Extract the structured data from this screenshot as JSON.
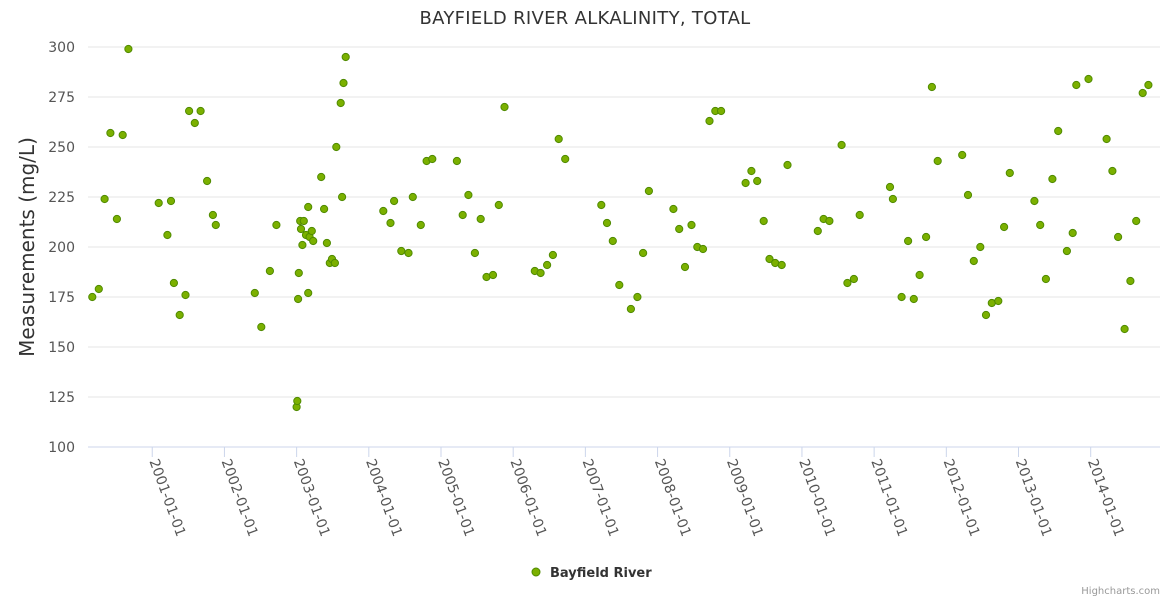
{
  "chart_data": {
    "type": "scatter",
    "title": "BAYFIELD RIVER ALKALINITY, TOTAL",
    "ylabel": "Measurements (mg/L)",
    "xlabel": "",
    "ylim": [
      100,
      300
    ],
    "yticks": [
      100,
      125,
      150,
      175,
      200,
      225,
      250,
      275,
      300
    ],
    "xlim": [
      2000.11,
      2014.96
    ],
    "xticks": [
      {
        "label": "2001-01-01",
        "value": 2001.0
      },
      {
        "label": "2002-01-01",
        "value": 2002.0
      },
      {
        "label": "2003-01-01",
        "value": 2003.0
      },
      {
        "label": "2004-01-01",
        "value": 2004.0
      },
      {
        "label": "2005-01-01",
        "value": 2005.0
      },
      {
        "label": "2006-01-01",
        "value": 2006.0
      },
      {
        "label": "2007-01-01",
        "value": 2007.0
      },
      {
        "label": "2008-01-01",
        "value": 2008.0
      },
      {
        "label": "2009-01-01",
        "value": 2009.0
      },
      {
        "label": "2010-01-01",
        "value": 2010.0
      },
      {
        "label": "2011-01-01",
        "value": 2011.0
      },
      {
        "label": "2012-01-01",
        "value": 2012.0
      },
      {
        "label": "2013-01-01",
        "value": 2013.0
      },
      {
        "label": "2014-01-01",
        "value": 2014.0
      }
    ],
    "grid": true,
    "legend_position": "bottom-center",
    "series": [
      {
        "name": "Bayfield River",
        "color": "#7bb000",
        "stroke": "#4f8a00",
        "points": [
          [
            2000.17,
            175
          ],
          [
            2000.26,
            179
          ],
          [
            2000.34,
            224
          ],
          [
            2000.42,
            257
          ],
          [
            2000.51,
            214
          ],
          [
            2000.59,
            256
          ],
          [
            2000.67,
            299
          ],
          [
            2001.09,
            222
          ],
          [
            2001.21,
            206
          ],
          [
            2001.26,
            223
          ],
          [
            2001.3,
            182
          ],
          [
            2001.38,
            166
          ],
          [
            2001.46,
            176
          ],
          [
            2001.51,
            268
          ],
          [
            2001.59,
            262
          ],
          [
            2001.67,
            268
          ],
          [
            2001.76,
            233
          ],
          [
            2001.84,
            216
          ],
          [
            2001.88,
            211
          ],
          [
            2002.42,
            177
          ],
          [
            2002.51,
            160
          ],
          [
            2002.63,
            188
          ],
          [
            2002.72,
            211
          ],
          [
            2003.0,
            120
          ],
          [
            2003.01,
            123
          ],
          [
            2003.02,
            174
          ],
          [
            2003.03,
            187
          ],
          [
            2003.05,
            213
          ],
          [
            2003.06,
            209
          ],
          [
            2003.08,
            201
          ],
          [
            2003.1,
            213
          ],
          [
            2003.13,
            206
          ],
          [
            2003.16,
            177
          ],
          [
            2003.16,
            220
          ],
          [
            2003.18,
            205
          ],
          [
            2003.21,
            208
          ],
          [
            2003.23,
            203
          ],
          [
            2003.34,
            235
          ],
          [
            2003.38,
            219
          ],
          [
            2003.42,
            202
          ],
          [
            2003.46,
            192
          ],
          [
            2003.49,
            194
          ],
          [
            2003.53,
            192
          ],
          [
            2003.55,
            250
          ],
          [
            2003.61,
            272
          ],
          [
            2003.63,
            225
          ],
          [
            2003.65,
            282
          ],
          [
            2003.68,
            295
          ],
          [
            2004.2,
            218
          ],
          [
            2004.3,
            212
          ],
          [
            2004.35,
            223
          ],
          [
            2004.45,
            198
          ],
          [
            2004.55,
            197
          ],
          [
            2004.61,
            225
          ],
          [
            2004.72,
            211
          ],
          [
            2004.8,
            243
          ],
          [
            2004.88,
            244
          ],
          [
            2005.22,
            243
          ],
          [
            2005.3,
            216
          ],
          [
            2005.38,
            226
          ],
          [
            2005.47,
            197
          ],
          [
            2005.55,
            214
          ],
          [
            2005.63,
            185
          ],
          [
            2005.72,
            186
          ],
          [
            2005.8,
            221
          ],
          [
            2005.88,
            270
          ],
          [
            2006.3,
            188
          ],
          [
            2006.38,
            187
          ],
          [
            2006.47,
            191
          ],
          [
            2006.55,
            196
          ],
          [
            2006.63,
            254
          ],
          [
            2006.72,
            244
          ],
          [
            2007.22,
            221
          ],
          [
            2007.3,
            212
          ],
          [
            2007.38,
            203
          ],
          [
            2007.47,
            181
          ],
          [
            2007.63,
            169
          ],
          [
            2007.72,
            175
          ],
          [
            2007.8,
            197
          ],
          [
            2007.88,
            228
          ],
          [
            2008.22,
            219
          ],
          [
            2008.3,
            209
          ],
          [
            2008.38,
            190
          ],
          [
            2008.47,
            211
          ],
          [
            2008.55,
            200
          ],
          [
            2008.63,
            199
          ],
          [
            2008.72,
            263
          ],
          [
            2008.8,
            268
          ],
          [
            2008.88,
            268
          ],
          [
            2009.22,
            232
          ],
          [
            2009.3,
            238
          ],
          [
            2009.38,
            233
          ],
          [
            2009.47,
            213
          ],
          [
            2009.55,
            194
          ],
          [
            2009.63,
            192
          ],
          [
            2009.72,
            191
          ],
          [
            2009.8,
            241
          ],
          [
            2010.22,
            208
          ],
          [
            2010.3,
            214
          ],
          [
            2010.38,
            213
          ],
          [
            2010.55,
            251
          ],
          [
            2010.63,
            182
          ],
          [
            2010.72,
            184
          ],
          [
            2010.8,
            216
          ],
          [
            2011.22,
            230
          ],
          [
            2011.26,
            224
          ],
          [
            2011.38,
            175
          ],
          [
            2011.47,
            203
          ],
          [
            2011.55,
            174
          ],
          [
            2011.63,
            186
          ],
          [
            2011.72,
            205
          ],
          [
            2011.8,
            280
          ],
          [
            2011.88,
            243
          ],
          [
            2012.22,
            246
          ],
          [
            2012.3,
            226
          ],
          [
            2012.38,
            193
          ],
          [
            2012.47,
            200
          ],
          [
            2012.55,
            166
          ],
          [
            2012.63,
            172
          ],
          [
            2012.72,
            173
          ],
          [
            2012.8,
            210
          ],
          [
            2012.88,
            237
          ],
          [
            2013.22,
            223
          ],
          [
            2013.3,
            211
          ],
          [
            2013.38,
            184
          ],
          [
            2013.47,
            234
          ],
          [
            2013.55,
            258
          ],
          [
            2013.67,
            198
          ],
          [
            2013.75,
            207
          ],
          [
            2013.8,
            281
          ],
          [
            2013.97,
            284
          ],
          [
            2014.22,
            254
          ],
          [
            2014.3,
            238
          ],
          [
            2014.38,
            205
          ],
          [
            2014.47,
            159
          ],
          [
            2014.55,
            183
          ],
          [
            2014.63,
            213
          ],
          [
            2014.72,
            277
          ],
          [
            2014.8,
            281
          ]
        ]
      }
    ],
    "credits": "Highcharts.com"
  }
}
